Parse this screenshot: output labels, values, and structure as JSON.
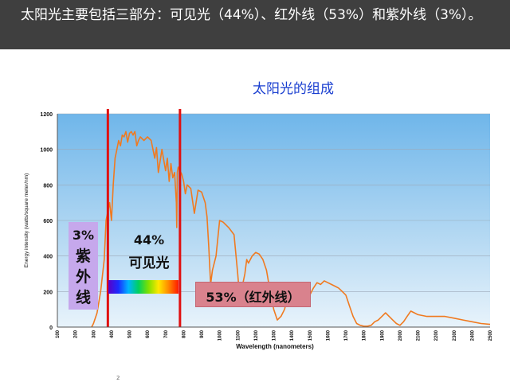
{
  "header": {
    "text": "太阳光主要包括三部分：可见光（44%）、红外线（53%）和紫外线（3%）。"
  },
  "chart_title": "太阳光的组成",
  "annotations": {
    "uv_pct": "3%",
    "uv_name": "紫外线",
    "visible_pct": "44%",
    "visible_name": "可见光",
    "ir_label": "53%（红外线）"
  },
  "page_mark": "2",
  "colors": {
    "header_bg": "#3f3f3f",
    "title": "#1a3fd0",
    "curve": "#f07a20",
    "boundary_lines": "#e01010",
    "plot_bg_top": "#6fb6ea",
    "plot_bg_bottom": "#e8f3fb",
    "uv_box": "#c6a8ec",
    "ir_box": "#d9828d"
  },
  "chart_data": {
    "type": "line",
    "xlabel": "Wavelength (nanometers)",
    "ylabel": "Energy intensity (watts/square meter/nm)",
    "xlim": [
      100,
      2500
    ],
    "ylim": [
      0,
      1200
    ],
    "x_ticks": [
      100,
      200,
      300,
      400,
      500,
      600,
      700,
      800,
      900,
      1000,
      1100,
      1200,
      1300,
      1400,
      1500,
      1600,
      1700,
      1800,
      1900,
      2000,
      2100,
      2200,
      2300,
      2400,
      2500
    ],
    "y_ticks": [
      0,
      200,
      400,
      600,
      800,
      1000,
      1200
    ],
    "grid": true,
    "boundaries": [
      380,
      780
    ],
    "series": [
      {
        "x": [
          290,
          300,
          320,
          340,
          360,
          370,
          380,
          390,
          400,
          410,
          420,
          430,
          440,
          450,
          460,
          470,
          480,
          490,
          500,
          510,
          520,
          530,
          540,
          550,
          560,
          580,
          600,
          620,
          640,
          650,
          660,
          680,
          700,
          710,
          720,
          730,
          740,
          750,
          760,
          762,
          765,
          770,
          780,
          790,
          800,
          810,
          820,
          840,
          860,
          880,
          900,
          920,
          930,
          940,
          950,
          960,
          980,
          1000,
          1020,
          1050,
          1080,
          1100,
          1110,
          1120,
          1130,
          1140,
          1150,
          1160,
          1180,
          1200,
          1220,
          1240,
          1260,
          1280,
          1300,
          1320,
          1340,
          1360,
          1380,
          1400,
          1420,
          1440,
          1460,
          1480,
          1500,
          1520,
          1540,
          1560,
          1580,
          1600,
          1620,
          1640,
          1660,
          1680,
          1700,
          1720,
          1740,
          1760,
          1780,
          1800,
          1820,
          1840,
          1860,
          1880,
          1900,
          1920,
          1940,
          1960,
          1980,
          2000,
          2020,
          2040,
          2060,
          2080,
          2100,
          2150,
          2200,
          2250,
          2300,
          2350,
          2400,
          2450,
          2500
        ],
        "y": [
          0,
          20,
          80,
          200,
          380,
          600,
          650,
          700,
          600,
          800,
          950,
          1000,
          1050,
          1020,
          1080,
          1070,
          1100,
          1040,
          1090,
          1100,
          1080,
          1100,
          1020,
          1050,
          1070,
          1050,
          1070,
          1050,
          950,
          1010,
          870,
          1000,
          880,
          950,
          820,
          920,
          840,
          870,
          700,
          560,
          870,
          900,
          880,
          860,
          820,
          750,
          800,
          780,
          640,
          770,
          760,
          700,
          620,
          450,
          240,
          320,
          400,
          600,
          590,
          560,
          520,
          300,
          180,
          120,
          250,
          300,
          380,
          360,
          400,
          420,
          410,
          380,
          320,
          200,
          100,
          40,
          60,
          100,
          180,
          200,
          240,
          250,
          240,
          220,
          180,
          220,
          250,
          240,
          260,
          250,
          240,
          230,
          220,
          200,
          180,
          120,
          60,
          20,
          10,
          5,
          5,
          10,
          30,
          40,
          60,
          80,
          60,
          40,
          20,
          10,
          30,
          60,
          90,
          80,
          70,
          60,
          60,
          60,
          50,
          40,
          30,
          20,
          15
        ]
      }
    ]
  }
}
